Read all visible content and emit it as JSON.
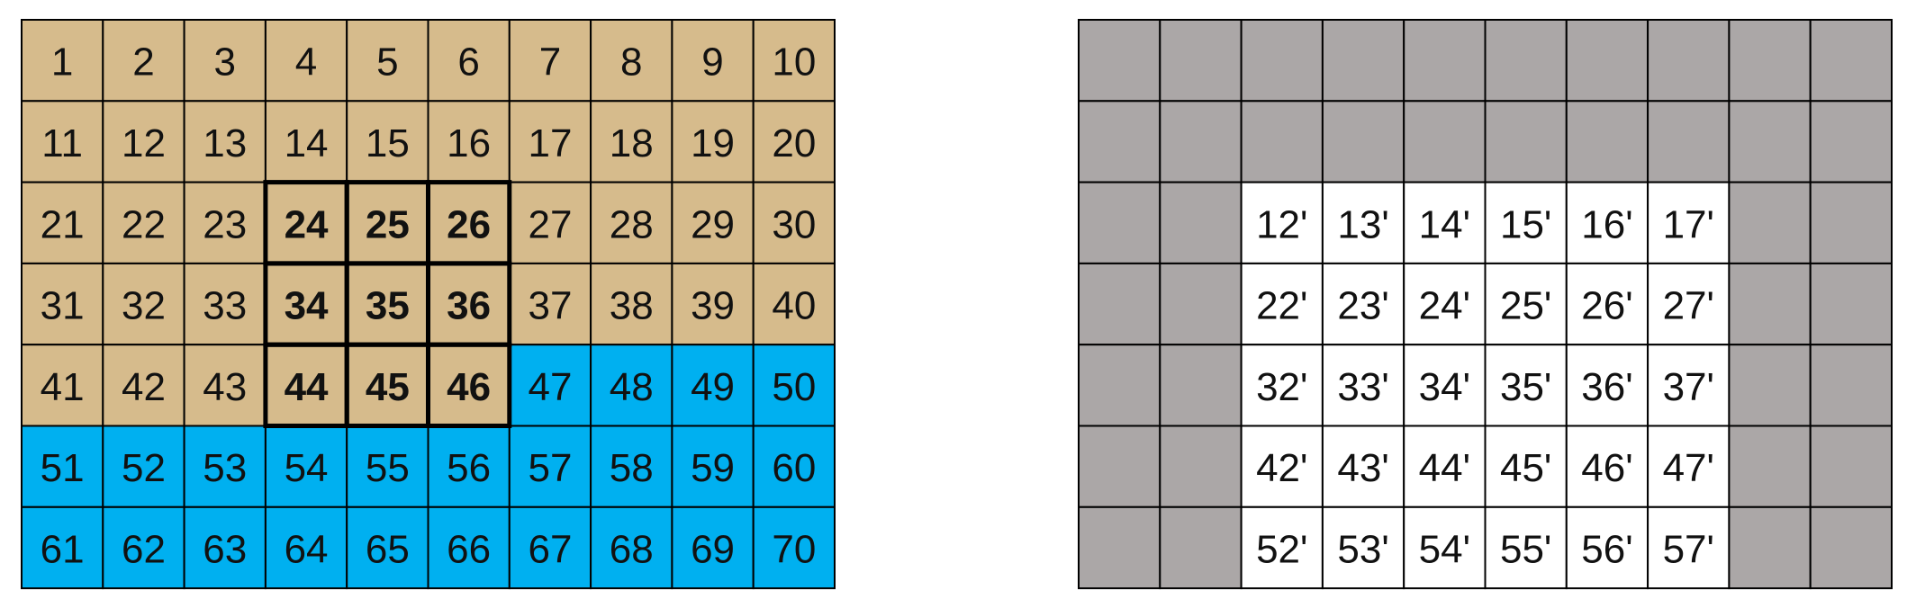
{
  "left": {
    "rows": [
      [
        "1",
        "2",
        "3",
        "4",
        "5",
        "6",
        "7",
        "8",
        "9",
        "10"
      ],
      [
        "11",
        "12",
        "13",
        "14",
        "15",
        "16",
        "17",
        "18",
        "19",
        "20"
      ],
      [
        "21",
        "22",
        "23",
        "24",
        "25",
        "26",
        "27",
        "28",
        "29",
        "30"
      ],
      [
        "31",
        "32",
        "33",
        "34",
        "35",
        "36",
        "37",
        "38",
        "39",
        "40"
      ],
      [
        "41",
        "42",
        "43",
        "44",
        "45",
        "46",
        "47",
        "48",
        "49",
        "50"
      ],
      [
        "51",
        "52",
        "53",
        "54",
        "55",
        "56",
        "57",
        "58",
        "59",
        "60"
      ],
      [
        "61",
        "62",
        "63",
        "64",
        "65",
        "66",
        "67",
        "68",
        "69",
        "70"
      ]
    ]
  },
  "right": {
    "rows": [
      [
        "12'",
        "13'",
        "14'",
        "15'",
        "16'",
        "17'"
      ],
      [
        "22'",
        "23'",
        "24'",
        "25'",
        "26'",
        "27'"
      ],
      [
        "32'",
        "33'",
        "34'",
        "35'",
        "36'",
        "37'"
      ],
      [
        "42'",
        "43'",
        "44'",
        "45'",
        "46'",
        "47'"
      ],
      [
        "52'",
        "53'",
        "54'",
        "55'",
        "56'",
        "57'"
      ]
    ]
  }
}
